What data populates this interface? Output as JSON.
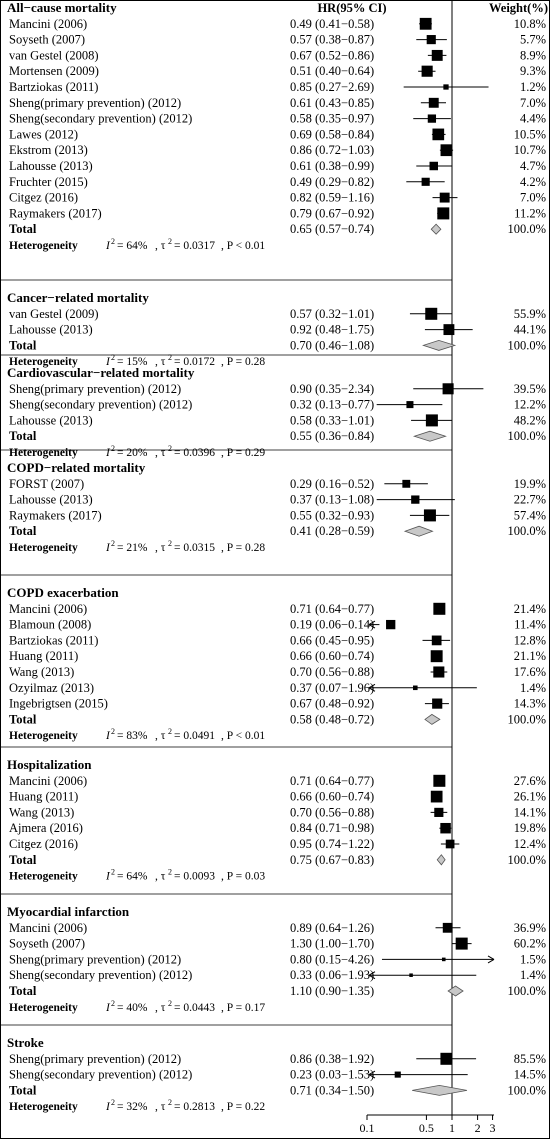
{
  "chart_data": {
    "type": "forest",
    "header": {
      "hr_label": "HR(95% CI)",
      "weight_label": "Weight(%)"
    },
    "x_scale": "log",
    "xlim": [
      0.1,
      3
    ],
    "ticks": [
      {
        "value": 0.1,
        "label": "0.1"
      },
      {
        "value": 0.5,
        "label": "0.5"
      },
      {
        "value": 1,
        "label": "1"
      },
      {
        "value": 2,
        "label": "2"
      },
      {
        "value": 3,
        "label": "3"
      }
    ],
    "groups": [
      {
        "title": "All−cause mortality",
        "studies": [
          {
            "name": "Mancini  (2006)",
            "hr": 0.49,
            "lo": 0.41,
            "hi": 0.58,
            "text": "0.49 (0.41−0.58)",
            "weight": "10.8%"
          },
          {
            "name": "Soyseth (2007)",
            "hr": 0.57,
            "lo": 0.38,
            "hi": 0.87,
            "text": "0.57 (0.38−0.87)",
            "weight": "5.7%"
          },
          {
            "name": "van Gestel (2008)",
            "hr": 0.67,
            "lo": 0.52,
            "hi": 0.86,
            "text": "0.67 (0.52−0.86)",
            "weight": "8.9%"
          },
          {
            "name": "Mortensen (2009)",
            "hr": 0.51,
            "lo": 0.4,
            "hi": 0.64,
            "text": "0.51 (0.40−0.64)",
            "weight": "9.3%"
          },
          {
            "name": "Bartziokas  (2011)",
            "hr": 0.85,
            "lo": 0.27,
            "hi": 2.69,
            "text": "0.85 (0.27−2.69)",
            "weight": "1.2%"
          },
          {
            "name": "Sheng(primary prevention) (2012)",
            "hr": 0.61,
            "lo": 0.43,
            "hi": 0.85,
            "text": "0.61 (0.43−0.85)",
            "weight": "7.0%"
          },
          {
            "name": "Sheng(secondary prevention) (2012)",
            "hr": 0.58,
            "lo": 0.35,
            "hi": 0.97,
            "text": "0.58 (0.35−0.97)",
            "weight": "4.4%"
          },
          {
            "name": "Lawes (2012)",
            "hr": 0.69,
            "lo": 0.58,
            "hi": 0.84,
            "text": "0.69 (0.58−0.84)",
            "weight": "10.5%"
          },
          {
            "name": "Ekstrom (2013)",
            "hr": 0.86,
            "lo": 0.72,
            "hi": 1.03,
            "text": "0.86 (0.72−1.03)",
            "weight": "10.7%"
          },
          {
            "name": "Lahousse (2013)",
            "hr": 0.61,
            "lo": 0.38,
            "hi": 0.99,
            "text": "0.61 (0.38−0.99)",
            "weight": "4.7%"
          },
          {
            "name": "Fruchter (2015)",
            "hr": 0.49,
            "lo": 0.29,
            "hi": 0.82,
            "text": "0.49 (0.29−0.82)",
            "weight": "4.2%"
          },
          {
            "name": "Citgez (2016)",
            "hr": 0.82,
            "lo": 0.59,
            "hi": 1.16,
            "text": "0.82 (0.59−1.16)",
            "weight": "7.0%"
          },
          {
            "name": "Raymakers (2017)",
            "hr": 0.79,
            "lo": 0.67,
            "hi": 0.92,
            "text": "0.79 (0.67−0.92)",
            "weight": "11.2%"
          }
        ],
        "total": {
          "label": "Total",
          "hr": 0.65,
          "lo": 0.57,
          "hi": 0.74,
          "text": "0.65 (0.57−0.74)",
          "weight": "100.0%"
        },
        "heterogeneity": {
          "label": "Heterogeneity",
          "i2": "= 64%",
          "tau2": "= 0.0317",
          "p": ", P < 0.01"
        }
      },
      {
        "title": "Cancer−related mortality",
        "studies": [
          {
            "name": "van Gestel (2009)",
            "hr": 0.57,
            "lo": 0.32,
            "hi": 1.01,
            "text": "0.57 (0.32−1.01)",
            "weight": "55.9%"
          },
          {
            "name": "Lahousse (2013)",
            "hr": 0.92,
            "lo": 0.48,
            "hi": 1.75,
            "text": "0.92 (0.48−1.75)",
            "weight": "44.1%"
          }
        ],
        "total": {
          "label": "Total",
          "hr": 0.7,
          "lo": 0.46,
          "hi": 1.08,
          "text": "0.70 (0.46−1.08)",
          "weight": "100.0%"
        },
        "heterogeneity": {
          "label": "Heterogeneity",
          "i2": "= 15%",
          "tau2": "= 0.0172",
          "p": ", P = 0.28"
        }
      },
      {
        "title": "Cardiovascular−related mortality",
        "studies": [
          {
            "name": "Sheng(primary prevention) (2012)",
            "hr": 0.9,
            "lo": 0.35,
            "hi": 2.34,
            "text": "0.90 (0.35−2.34)",
            "weight": "39.5%"
          },
          {
            "name": "Sheng(secondary prevention) (2012)",
            "hr": 0.32,
            "lo": 0.13,
            "hi": 0.77,
            "text": "0.32 (0.13−0.77)",
            "weight": "12.2%"
          },
          {
            "name": "Lahousse (2013)",
            "hr": 0.58,
            "lo": 0.33,
            "hi": 1.01,
            "text": "0.58 (0.33−1.01)",
            "weight": "48.2%"
          }
        ],
        "total": {
          "label": "Total",
          "hr": 0.55,
          "lo": 0.36,
          "hi": 0.84,
          "text": "0.55 (0.36−0.84)",
          "weight": "100.0%"
        },
        "heterogeneity": {
          "label": "Heterogeneity",
          "i2": "= 20%",
          "tau2": "= 0.0396",
          "p": ", P = 0.29"
        }
      },
      {
        "title": "COPD−related mortality",
        "studies": [
          {
            "name": "FORST (2007)",
            "hr": 0.29,
            "lo": 0.16,
            "hi": 0.52,
            "text": "0.29 (0.16−0.52)",
            "weight": "19.9%"
          },
          {
            "name": "Lahousse (2013)",
            "hr": 0.37,
            "lo": 0.13,
            "hi": 1.08,
            "text": "0.37 (0.13−1.08)",
            "weight": "22.7%"
          },
          {
            "name": "Raymakers (2017)",
            "hr": 0.55,
            "lo": 0.32,
            "hi": 0.93,
            "text": "0.55 (0.32−0.93)",
            "weight": "57.4%"
          }
        ],
        "total": {
          "label": "Total",
          "hr": 0.41,
          "lo": 0.28,
          "hi": 0.59,
          "text": "0.41 (0.28−0.59)",
          "weight": "100.0%"
        },
        "heterogeneity": {
          "label": "Heterogeneity",
          "i2": "= 21%",
          "tau2": "= 0.0315",
          "p": ", P = 0.28"
        }
      },
      {
        "title": "COPD exacerbation",
        "studies": [
          {
            "name": "Mancini (2006)",
            "hr": 0.71,
            "lo": 0.64,
            "hi": 0.77,
            "text": "0.71 (0.64−0.77)",
            "weight": "21.4%"
          },
          {
            "name": "Blamoun (2008)",
            "hr": 0.19,
            "lo": 0.06,
            "hi": 0.14,
            "text": "0.19 (0.06−0.14)",
            "weight": "11.4%"
          },
          {
            "name": "Bartziokas (2011)",
            "hr": 0.66,
            "lo": 0.45,
            "hi": 0.95,
            "text": "0.66 (0.45−0.95)",
            "weight": "12.8%"
          },
          {
            "name": "Huang (2011)",
            "hr": 0.66,
            "lo": 0.6,
            "hi": 0.74,
            "text": "0.66 (0.60−0.74)",
            "weight": "21.1%"
          },
          {
            "name": "Wang (2013)",
            "hr": 0.7,
            "lo": 0.56,
            "hi": 0.88,
            "text": "0.70 (0.56−0.88)",
            "weight": "17.6%"
          },
          {
            "name": "Ozyilmaz (2013)",
            "hr": 0.37,
            "lo": 0.07,
            "hi": 1.96,
            "text": "0.37 (0.07−1.96)",
            "weight": "1.4%"
          },
          {
            "name": "Ingebrigtsen (2015)",
            "hr": 0.67,
            "lo": 0.48,
            "hi": 0.92,
            "text": "0.67 (0.48−0.92)",
            "weight": "14.3%"
          }
        ],
        "total": {
          "label": "Total",
          "hr": 0.58,
          "lo": 0.48,
          "hi": 0.72,
          "text": "0.58 (0.48−0.72)",
          "weight": "100.0%"
        },
        "heterogeneity": {
          "label": "Heterogeneity",
          "i2": "= 83%",
          "tau2": "= 0.0491",
          "p": ", P < 0.01"
        }
      },
      {
        "title": "Hospitalization",
        "studies": [
          {
            "name": "Mancini (2006)",
            "hr": 0.71,
            "lo": 0.64,
            "hi": 0.77,
            "text": "0.71 (0.64−0.77)",
            "weight": "27.6%"
          },
          {
            "name": "Huang (2011)",
            "hr": 0.66,
            "lo": 0.6,
            "hi": 0.74,
            "text": "0.66 (0.60−0.74)",
            "weight": "26.1%"
          },
          {
            "name": "Wang (2013)",
            "hr": 0.7,
            "lo": 0.56,
            "hi": 0.88,
            "text": "0.70 (0.56−0.88)",
            "weight": "14.1%"
          },
          {
            "name": "Ajmera (2016)",
            "hr": 0.84,
            "lo": 0.71,
            "hi": 0.98,
            "text": "0.84 (0.71−0.98)",
            "weight": "19.8%"
          },
          {
            "name": "Citgez (2016)",
            "hr": 0.95,
            "lo": 0.74,
            "hi": 1.22,
            "text": "0.95 (0.74−1.22)",
            "weight": "12.4%"
          }
        ],
        "total": {
          "label": "Total",
          "hr": 0.75,
          "lo": 0.67,
          "hi": 0.83,
          "text": "0.75 (0.67−0.83)",
          "weight": "100.0%"
        },
        "heterogeneity": {
          "label": "Heterogeneity",
          "i2": "= 64%",
          "tau2": "= 0.0093",
          "p": ", P = 0.03"
        }
      },
      {
        "title": "Myocardial infarction",
        "studies": [
          {
            "name": "Mancini  (2006)",
            "hr": 0.89,
            "lo": 0.64,
            "hi": 1.26,
            "text": "0.89 (0.64−1.26)",
            "weight": "36.9%"
          },
          {
            "name": "Soyseth (2007)",
            "hr": 1.3,
            "lo": 1.0,
            "hi": 1.7,
            "text": "1.30 (1.00−1.70)",
            "weight": "60.2%"
          },
          {
            "name": "Sheng(primary prevention) (2012)",
            "hr": 0.8,
            "lo": 0.15,
            "hi": 4.26,
            "text": "0.80 (0.15−4.26)",
            "weight": "1.5%"
          },
          {
            "name": "Sheng(secondary prevention) (2012)",
            "hr": 0.33,
            "lo": 0.06,
            "hi": 1.93,
            "text": "0.33 (0.06−1.93)",
            "weight": "1.4%"
          }
        ],
        "total": {
          "label": "Total",
          "hr": 1.1,
          "lo": 0.9,
          "hi": 1.35,
          "text": "1.10 (0.90−1.35)",
          "weight": "100.0%"
        },
        "heterogeneity": {
          "label": "Heterogeneity",
          "i2": "= 40%",
          "tau2": "= 0.0443",
          "p": ", P = 0.17"
        }
      },
      {
        "title": "Stroke",
        "studies": [
          {
            "name": "Sheng(primary prevention) (2012)",
            "hr": 0.86,
            "lo": 0.38,
            "hi": 1.92,
            "text": "0.86 (0.38−1.92)",
            "weight": "85.5%"
          },
          {
            "name": "Sheng(secondary prevention) (2012)",
            "hr": 0.23,
            "lo": 0.03,
            "hi": 1.53,
            "text": "0.23 (0.03−1.53)",
            "weight": "14.5%"
          }
        ],
        "total": {
          "label": "Total",
          "hr": 0.71,
          "lo": 0.34,
          "hi": 1.5,
          "text": "0.71 (0.34−1.50)",
          "weight": "100.0%"
        },
        "heterogeneity": {
          "label": "Heterogeneity",
          "i2": "= 32%",
          "tau2": "= 0.2813",
          "p": ", P = 0.22"
        }
      }
    ]
  }
}
